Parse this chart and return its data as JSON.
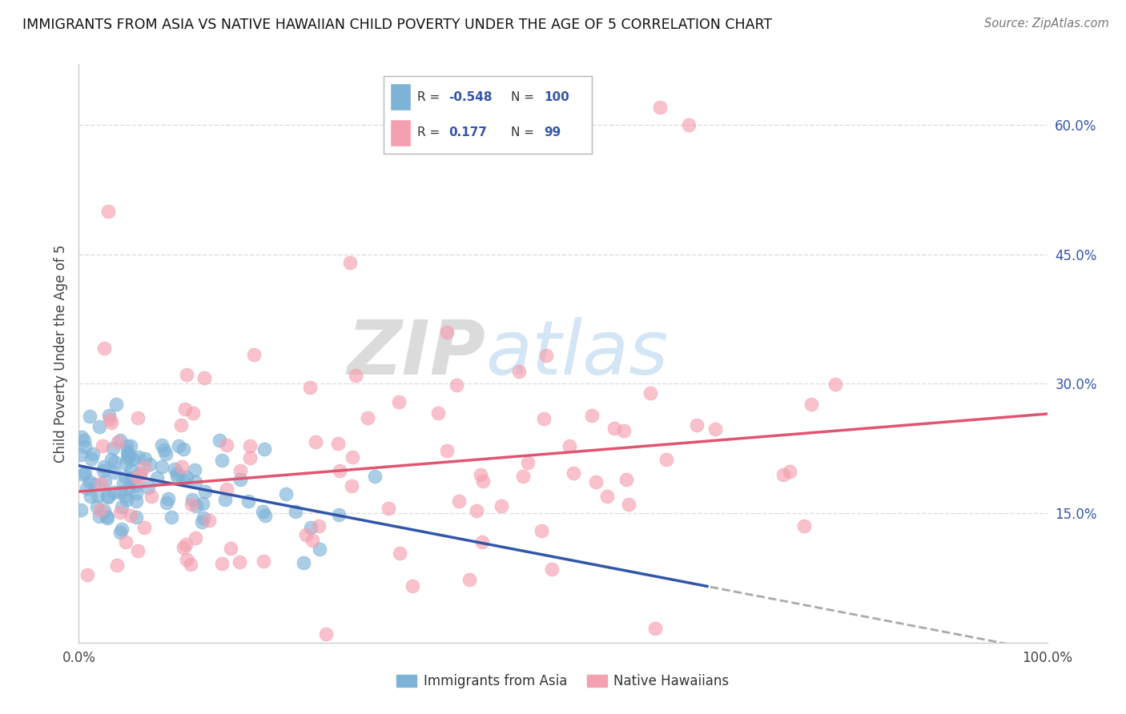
{
  "title": "IMMIGRANTS FROM ASIA VS NATIVE HAWAIIAN CHILD POVERTY UNDER THE AGE OF 5 CORRELATION CHART",
  "source": "Source: ZipAtlas.com",
  "legend_labels": [
    "Immigrants from Asia",
    "Native Hawaiians"
  ],
  "ylabel": "Child Poverty Under the Age of 5",
  "legend_r": [
    -0.548,
    0.177
  ],
  "legend_n": [
    100,
    99
  ],
  "xlim": [
    0,
    1.0
  ],
  "ylim": [
    0,
    0.67
  ],
  "yticks": [
    0.15,
    0.3,
    0.45,
    0.6
  ],
  "ytick_labels": [
    "15.0%",
    "30.0%",
    "45.0%",
    "60.0%"
  ],
  "xtick_labels": [
    "0.0%",
    "100.0%"
  ],
  "blue_color": "#7EB3D8",
  "pink_color": "#F5A0B0",
  "trendline_blue": "#3355AA",
  "trendline_pink": "#E05570",
  "trendline_dash_color": "#AAAAAA",
  "watermark_text": "ZIPatlas",
  "watermark_color": "#CCDDEE",
  "blue_trend_x0": 0.0,
  "blue_trend_y0": 0.205,
  "blue_trend_x1": 0.65,
  "blue_trend_y1": 0.065,
  "blue_trend_dash_x1": 1.0,
  "blue_trend_dash_y1": -0.01,
  "pink_trend_x0": 0.0,
  "pink_trend_y0": 0.175,
  "pink_trend_x1": 1.0,
  "pink_trend_y1": 0.265
}
